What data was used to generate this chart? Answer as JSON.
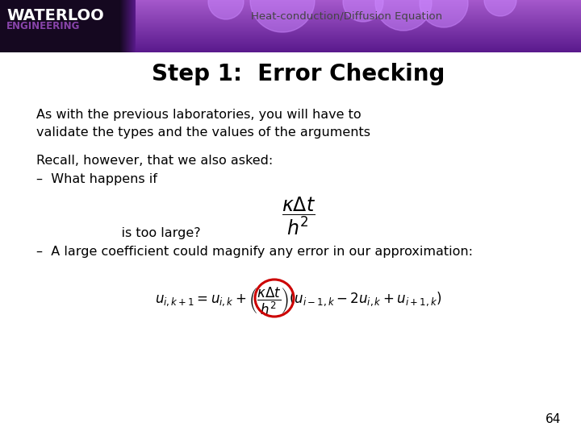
{
  "title_top": "Heat-conduction/Diffusion Equation",
  "title_main": "Step 1:  Error Checking",
  "body_text1_line1": "As with the previous laboratories, you will have to",
  "body_text1_line2": "validate the types and the values of the arguments",
  "body_text2": "Recall, however, that we also asked:",
  "bullet1": "–  What happens if",
  "text_is_too_large": "    is too large?",
  "bullet2": "–  A large coefficient could magnify any error in our approximation:",
  "page_number": "64",
  "bg_color": "#ffffff",
  "title_color": "#000000",
  "text_color": "#000000",
  "circle_color": "#cc0000",
  "header_text_color": "#444444",
  "waterloo_color": "#ffffff",
  "engineering_color": "#8844aa",
  "logo_bg_color": "#1a0a2e",
  "header_purple_light": "#c8a8e8",
  "header_purple_dark": "#6020a0"
}
